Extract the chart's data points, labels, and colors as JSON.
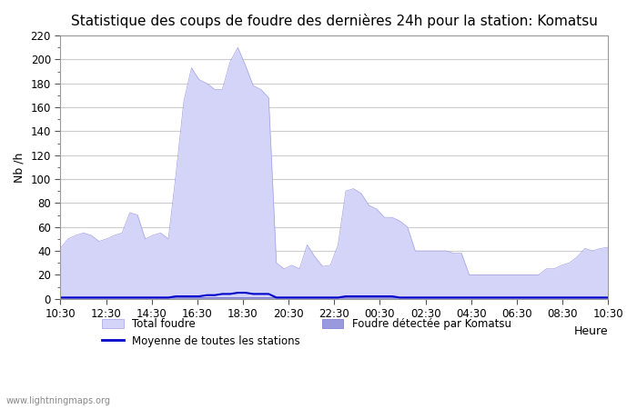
{
  "title": "Statistique des coups de foudre des dernières 24h pour la station: Komatsu",
  "ylabel": "Nb /h",
  "xlabel": "Heure",
  "watermark": "www.lightningmaps.org",
  "ylim": [
    0,
    220
  ],
  "yticks": [
    0,
    20,
    40,
    60,
    80,
    100,
    120,
    140,
    160,
    180,
    200,
    220
  ],
  "xtick_labels": [
    "10:30",
    "12:30",
    "14:30",
    "16:30",
    "18:30",
    "20:30",
    "22:30",
    "00:30",
    "02:30",
    "04:30",
    "06:30",
    "08:30",
    "10:30"
  ],
  "legend": {
    "total_foudre_color": "#ccccff",
    "local_foudre_color": "#8888ee",
    "moyenne_color": "#0000cc",
    "total_label": "Total foudre",
    "local_label": "Foudre détectée par Komatsu",
    "moyenne_label": "Moyenne de toutes les stations"
  },
  "total_foudre": [
    42,
    50,
    53,
    55,
    53,
    48,
    50,
    53,
    55,
    72,
    70,
    50,
    53,
    55,
    50,
    105,
    165,
    193,
    183,
    180,
    175,
    175,
    198,
    210,
    195,
    178,
    175,
    168,
    30,
    25,
    28,
    25,
    45,
    35,
    27,
    28,
    45,
    90,
    92,
    88,
    78,
    75,
    68,
    68,
    65,
    60,
    40,
    40,
    40,
    40,
    40,
    38,
    38,
    20,
    20,
    20,
    20,
    20,
    20,
    20,
    20,
    20,
    20,
    25,
    25,
    28,
    30,
    35,
    42,
    40,
    42,
    43
  ],
  "local_foudre": [
    1,
    1,
    1,
    1,
    1,
    1,
    1,
    1,
    1,
    1,
    1,
    1,
    1,
    1,
    1,
    1,
    1,
    1,
    1,
    1,
    1,
    1,
    1,
    1,
    1,
    1,
    1,
    1,
    1,
    1,
    1,
    1,
    1,
    1,
    1,
    1,
    1,
    1,
    1,
    1,
    1,
    1,
    1,
    1,
    1,
    1,
    1,
    1,
    1,
    1,
    1,
    1,
    1,
    1,
    1,
    1,
    1,
    1,
    1,
    1,
    1,
    1,
    1,
    1,
    1,
    1,
    1,
    1,
    1,
    1,
    1,
    1
  ],
  "moyenne": [
    1,
    1,
    1,
    1,
    1,
    1,
    1,
    1,
    1,
    1,
    1,
    1,
    1,
    1,
    1,
    2,
    2,
    2,
    2,
    3,
    3,
    4,
    4,
    5,
    5,
    4,
    4,
    4,
    1,
    1,
    1,
    1,
    1,
    1,
    1,
    1,
    1,
    2,
    2,
    2,
    2,
    2,
    2,
    2,
    1,
    1,
    1,
    1,
    1,
    1,
    1,
    1,
    1,
    1,
    1,
    1,
    1,
    1,
    1,
    1,
    1,
    1,
    1,
    1,
    1,
    1,
    1,
    1,
    1,
    1,
    1,
    1
  ],
  "bg_color": "#ffffff",
  "plot_bg_color": "#ffffff",
  "grid_color": "#cccccc",
  "title_fontsize": 11,
  "axis_fontsize": 9,
  "tick_fontsize": 8.5
}
